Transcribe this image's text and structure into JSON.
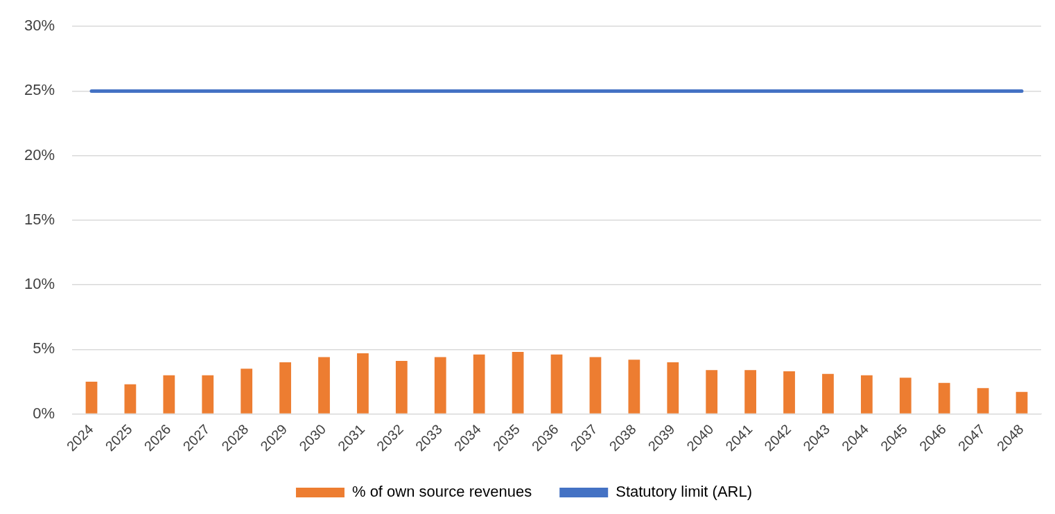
{
  "chart_data": {
    "type": "bar",
    "categories": [
      "2024",
      "2025",
      "2026",
      "2027",
      "2028",
      "2029",
      "2030",
      "2031",
      "2032",
      "2033",
      "2034",
      "2035",
      "2036",
      "2037",
      "2038",
      "2039",
      "2040",
      "2041",
      "2042",
      "2043",
      "2044",
      "2045",
      "2046",
      "2047",
      "2048"
    ],
    "series": [
      {
        "name": "% of own source revenues",
        "color": "#ed7d31",
        "values": [
          2.5,
          2.3,
          3.0,
          3.0,
          3.5,
          4.0,
          4.4,
          4.7,
          4.1,
          4.4,
          4.6,
          4.8,
          4.6,
          4.4,
          4.2,
          4.0,
          3.4,
          3.4,
          3.3,
          3.1,
          3.0,
          2.8,
          2.4,
          2.0,
          1.7
        ]
      },
      {
        "name": "Statutory limit (ARL)",
        "type": "line",
        "color": "#4472c4",
        "values": [
          25,
          25,
          25,
          25,
          25,
          25,
          25,
          25,
          25,
          25,
          25,
          25,
          25,
          25,
          25,
          25,
          25,
          25,
          25,
          25,
          25,
          25,
          25,
          25,
          25
        ]
      }
    ],
    "ylim": [
      0,
      30
    ],
    "yticks": [
      {
        "value": 0,
        "label": "0%"
      },
      {
        "value": 5,
        "label": "5%"
      },
      {
        "value": 10,
        "label": "10%"
      },
      {
        "value": 15,
        "label": "15%"
      },
      {
        "value": 20,
        "label": "20%"
      },
      {
        "value": 25,
        "label": "25%"
      },
      {
        "value": 30,
        "label": "30%"
      }
    ],
    "grid": "y",
    "legend": "bottom",
    "marker": "none"
  }
}
